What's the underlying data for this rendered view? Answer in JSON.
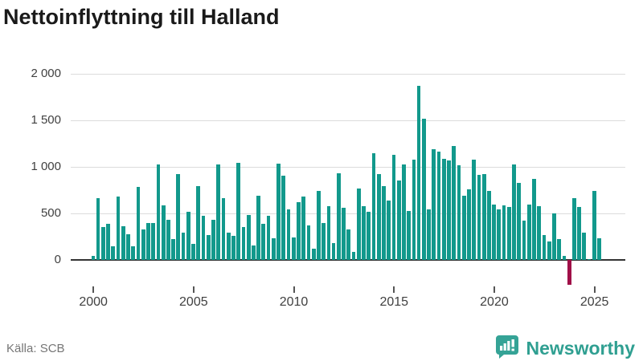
{
  "title": "Nettoinflyttning till Halland",
  "source": "Källa: SCB",
  "branding": {
    "name": "Newsworthy",
    "icon": "newsworthy-speech-bubble-bars-icon"
  },
  "colors": {
    "bar_positive": "#12998c",
    "bar_negative": "#a01048",
    "grid": "#dcdcdc",
    "axis": "#333333",
    "brand_teal": "#2f9f91",
    "title_text": "#1a1a1a",
    "axis_text": "#404040",
    "source_text": "#767676"
  },
  "chart_data": {
    "type": "bar",
    "title": "Nettoinflyttning till Halland",
    "xlabel": "",
    "ylabel": "",
    "x_unit": "quarter",
    "start_period": "2000 Q1",
    "end_period": "2025 Q2",
    "x_tick_years": [
      "2000",
      "2005",
      "2010",
      "2015",
      "2020",
      "2025"
    ],
    "y_ticks": [
      0,
      500,
      1000,
      1500,
      2000
    ],
    "y_tick_labels": [
      "0",
      "500",
      "1 000",
      "1 500",
      "2 000"
    ],
    "ylim": [
      -350,
      2050
    ],
    "grid": true,
    "legend": "none",
    "series": [
      {
        "name": "Nettoinflyttning",
        "values": [
          40,
          660,
          350,
          385,
          145,
          680,
          360,
          280,
          150,
          785,
          325,
          400,
          400,
          1025,
          585,
          430,
          225,
          920,
          295,
          520,
          170,
          795,
          475,
          265,
          435,
          1030,
          660,
          290,
          255,
          1045,
          350,
          485,
          155,
          690,
          385,
          470,
          235,
          1035,
          905,
          540,
          245,
          620,
          680,
          370,
          125,
          745,
          400,
          575,
          185,
          930,
          560,
          325,
          90,
          765,
          575,
          520,
          1150,
          925,
          790,
          635,
          1130,
          855,
          1025,
          530,
          1080,
          1870,
          1520,
          540,
          1190,
          1160,
          1090,
          1070,
          1225,
          1020,
          690,
          755,
          1080,
          910,
          925,
          745,
          595,
          545,
          585,
          565,
          1030,
          825,
          425,
          595,
          870,
          575,
          270,
          200,
          500,
          220,
          40,
          -265,
          665,
          565,
          295,
          10,
          745,
          230
        ]
      }
    ]
  }
}
